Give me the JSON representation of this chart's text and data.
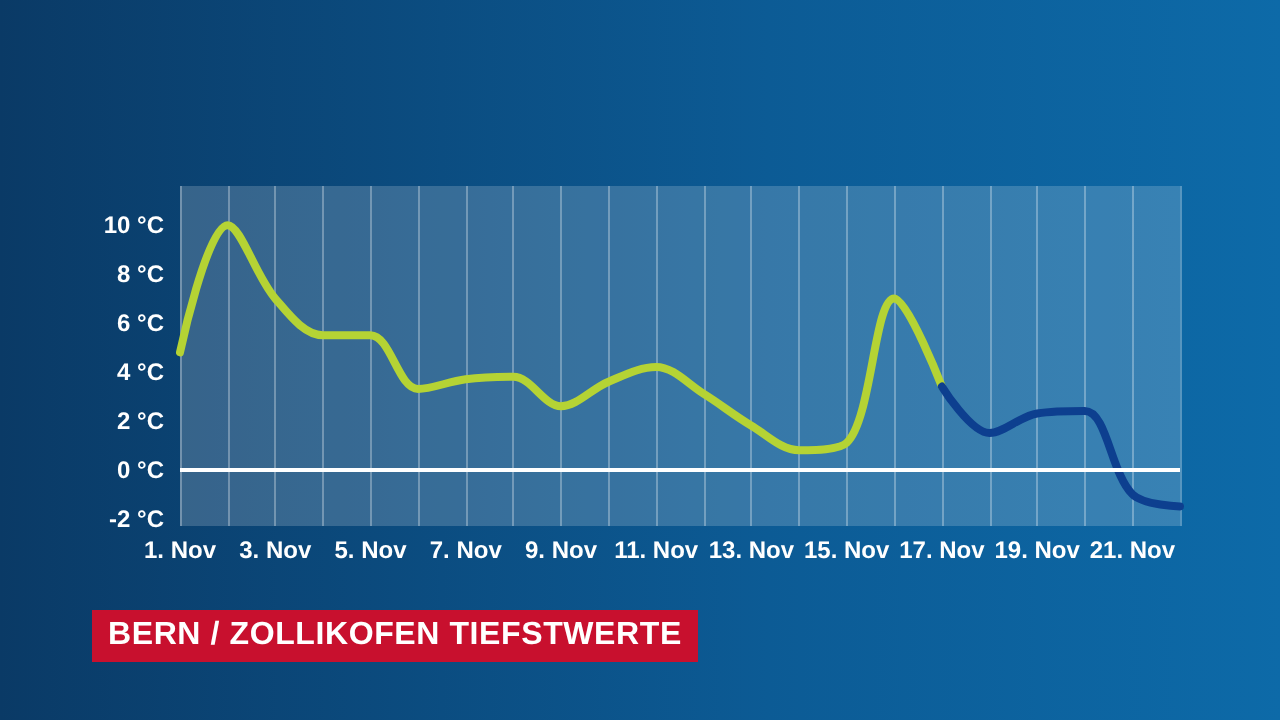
{
  "chart_data": {
    "type": "line",
    "title": "BERN / ZOLLIKOFEN TIEFSTWERTE",
    "categories": [
      "1. Nov",
      null,
      "3. Nov",
      null,
      "5. Nov",
      null,
      "7. Nov",
      null,
      "9. Nov",
      null,
      "11. Nov",
      null,
      "13. Nov",
      null,
      "15. Nov",
      null,
      "17. Nov",
      null,
      "19. Nov",
      null,
      "21. Nov",
      null
    ],
    "ylim": [
      -2.3,
      11.6
    ],
    "yticks": [
      {
        "value": -2,
        "label": "-2 °C"
      },
      {
        "value": 0,
        "label": "0 °C"
      },
      {
        "value": 2,
        "label": "2 °C"
      },
      {
        "value": 4,
        "label": "4 °C"
      },
      {
        "value": 6,
        "label": "6 °C"
      },
      {
        "value": 8,
        "label": "8 °C"
      },
      {
        "value": 10,
        "label": "10 °C"
      }
    ],
    "grid": "x",
    "marker": "none",
    "line_style": "solid",
    "ref_lines": [
      {
        "axis": "y",
        "value": 0,
        "color": "#ffffff"
      }
    ],
    "series": [
      {
        "color": "#b5d334",
        "values": [
          4.8,
          10.0,
          7.0,
          5.5,
          5.5,
          3.3,
          3.7,
          3.8,
          2.6,
          3.6,
          4.2,
          3.1,
          1.8,
          0.8,
          1.1,
          7.0,
          3.4,
          null,
          null,
          null,
          null,
          null
        ]
      },
      {
        "color": "#0d3f8f",
        "values": [
          null,
          null,
          null,
          null,
          null,
          null,
          null,
          null,
          null,
          null,
          null,
          null,
          null,
          null,
          null,
          null,
          3.4,
          1.5,
          2.3,
          2.4,
          -1.0,
          -1.5
        ]
      }
    ]
  }
}
